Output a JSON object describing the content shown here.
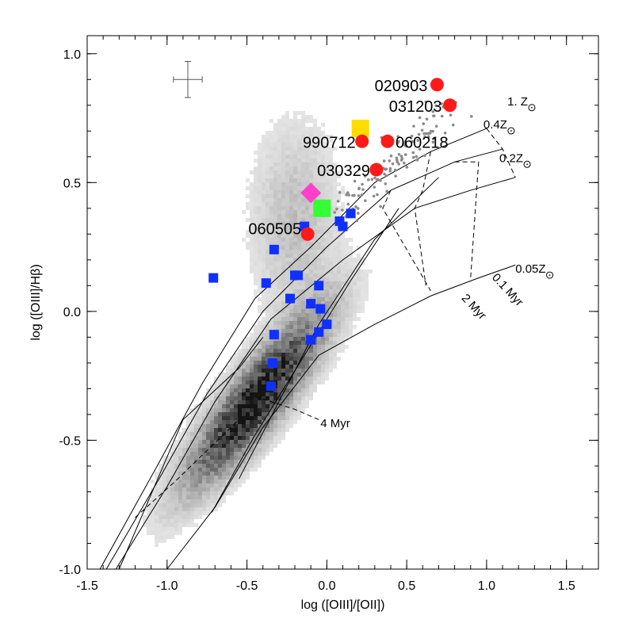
{
  "chart_data": {
    "type": "scatter",
    "xlabel": "log ([OIII]/[OII])",
    "ylabel": "log ([OIII]/Hβ)",
    "xlim": [
      -1.5,
      1.7
    ],
    "ylim": [
      -1.0,
      1.07
    ],
    "xticks": [
      {
        "v": -1.5,
        "label": "-1.5"
      },
      {
        "v": -1.0,
        "label": "-1.0"
      },
      {
        "v": -0.5,
        "label": "-0.5"
      },
      {
        "v": 0.0,
        "label": "0.0"
      },
      {
        "v": 0.5,
        "label": "0.5"
      },
      {
        "v": 1.0,
        "label": "1.0"
      },
      {
        "v": 1.5,
        "label": "1.5"
      }
    ],
    "yticks": [
      {
        "v": -1.0,
        "label": "-1.0"
      },
      {
        "v": -0.5,
        "label": "-0.5"
      },
      {
        "v": 0.0,
        "label": "0.0"
      },
      {
        "v": 0.5,
        "label": "0.5"
      },
      {
        "v": 1.0,
        "label": "1.0"
      }
    ],
    "grid": false,
    "error_bar": {
      "x": -0.87,
      "y": 0.9,
      "dx": 0.09,
      "dy": 0.07
    },
    "named_points": [
      {
        "label": "020903",
        "x": 0.69,
        "y": 0.88,
        "color": "#ff1a1a"
      },
      {
        "label": "031203",
        "x": 0.77,
        "y": 0.8,
        "color": "#ff1a1a"
      },
      {
        "label": "990712",
        "x": 0.22,
        "y": 0.66,
        "color": "#ff1a1a"
      },
      {
        "label": "060218",
        "x": 0.38,
        "y": 0.66,
        "color": "#ff1a1a"
      },
      {
        "label": "030329",
        "x": 0.31,
        "y": 0.55,
        "color": "#ff1a1a"
      },
      {
        "label": "060505",
        "x": -0.12,
        "y": 0.3,
        "color": "#ff1a1a"
      }
    ],
    "special_points": [
      {
        "shape": "square",
        "x": 0.21,
        "y": 0.71,
        "color": "#ffdd00"
      },
      {
        "shape": "diamond",
        "x": -0.1,
        "y": 0.46,
        "color": "#ff40cc"
      },
      {
        "shape": "square",
        "x": -0.03,
        "y": 0.4,
        "color": "#33ff33"
      }
    ],
    "blue_points": [
      [
        -0.71,
        0.13
      ],
      [
        -0.33,
        0.24
      ],
      [
        -0.38,
        0.11
      ],
      [
        -0.2,
        0.14
      ],
      [
        -0.18,
        0.14
      ],
      [
        -0.23,
        0.05
      ],
      [
        -0.1,
        0.03
      ],
      [
        -0.05,
        0.1
      ],
      [
        -0.04,
        0.01
      ],
      [
        0.0,
        -0.05
      ],
      [
        -0.05,
        -0.08
      ],
      [
        -0.1,
        -0.11
      ],
      [
        -0.33,
        -0.09
      ],
      [
        -0.34,
        -0.2
      ],
      [
        -0.35,
        -0.29
      ],
      [
        0.08,
        0.35
      ],
      [
        0.1,
        0.33
      ],
      [
        0.15,
        0.38
      ],
      [
        -0.14,
        0.33
      ]
    ],
    "blue_color": "#1030ff",
    "model_labels": [
      {
        "text": "1. Z",
        "x": 1.13,
        "y": 0.8
      },
      {
        "text": "0.4Z",
        "x": 0.98,
        "y": 0.71
      },
      {
        "text": "0.2Z",
        "x": 1.08,
        "y": 0.58
      },
      {
        "text": "0.05Z",
        "x": 1.18,
        "y": 0.15
      },
      {
        "text": "0.1 Myr",
        "x": 1.03,
        "y": 0.13,
        "rotate": 47
      },
      {
        "text": "2 Myr",
        "x": 0.84,
        "y": 0.05,
        "rotate": 47
      },
      {
        "text": "4 Myr",
        "x": -0.04,
        "y": -0.45
      }
    ],
    "model_tracks": [
      [
        [
          -1.42,
          -1.0
        ],
        [
          -1.08,
          -0.62
        ],
        [
          -0.78,
          -0.28
        ],
        [
          -0.45,
          0.05
        ],
        [
          -0.1,
          0.25
        ],
        [
          0.3,
          0.5
        ],
        [
          0.65,
          0.62
        ],
        [
          1.0,
          0.71
        ]
      ],
      [
        [
          -1.38,
          -1.0
        ],
        [
          -1.05,
          -0.65
        ],
        [
          -0.75,
          -0.32
        ],
        [
          -0.4,
          0.0
        ],
        [
          0.0,
          0.25
        ],
        [
          0.4,
          0.47
        ],
        [
          0.8,
          0.58
        ],
        [
          1.1,
          0.63
        ]
      ],
      [
        [
          -1.32,
          -1.0
        ],
        [
          -1.0,
          -0.68
        ],
        [
          -0.7,
          -0.35
        ],
        [
          -0.35,
          -0.03
        ],
        [
          0.1,
          0.2
        ],
        [
          0.55,
          0.4
        ],
        [
          0.9,
          0.47
        ],
        [
          1.18,
          0.52
        ]
      ],
      [
        [
          -1.0,
          -1.0
        ],
        [
          -0.7,
          -0.76
        ],
        [
          -0.4,
          -0.45
        ],
        [
          -0.05,
          -0.17
        ],
        [
          0.3,
          -0.05
        ],
        [
          0.65,
          0.06
        ],
        [
          0.95,
          0.13
        ],
        [
          1.18,
          0.18
        ]
      ],
      [
        [
          -1.3,
          -1.0
        ],
        [
          -0.9,
          -0.42
        ],
        [
          -0.55,
          -0.22
        ],
        [
          -0.4,
          -0.1
        ]
      ],
      [
        [
          -0.55,
          -0.65
        ],
        [
          -0.3,
          -0.35
        ],
        [
          -0.05,
          -0.05
        ],
        [
          0.3,
          0.28
        ],
        [
          0.7,
          0.52
        ]
      ],
      [
        [
          -0.72,
          -0.78
        ],
        [
          -0.45,
          -0.48
        ],
        [
          -0.15,
          -0.18
        ],
        [
          0.15,
          0.12
        ],
        [
          0.45,
          0.4
        ]
      ]
    ],
    "model_isochrones": [
      [
        [
          1.0,
          0.71
        ],
        [
          1.1,
          0.63
        ],
        [
          1.18,
          0.52
        ]
      ],
      [
        [
          0.8,
          0.58
        ],
        [
          0.95,
          0.58
        ],
        [
          0.9,
          0.13
        ]
      ],
      [
        [
          0.65,
          0.62
        ],
        [
          0.6,
          0.47
        ],
        [
          0.55,
          0.4
        ],
        [
          0.62,
          0.1
        ]
      ],
      [
        [
          0.4,
          0.47
        ],
        [
          0.35,
          0.4
        ],
        [
          0.65,
          0.08
        ]
      ],
      [
        [
          -1.2,
          -0.8
        ],
        [
          -0.95,
          -0.66
        ],
        [
          -0.55,
          -0.42
        ]
      ],
      [
        [
          -0.45,
          -0.33
        ],
        [
          -0.2,
          -0.38
        ],
        [
          -0.05,
          -0.42
        ]
      ]
    ]
  }
}
